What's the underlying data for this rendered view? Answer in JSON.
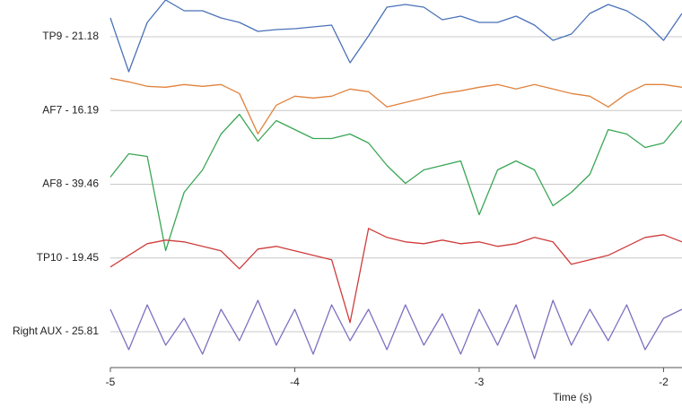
{
  "chart_data": {
    "type": "line",
    "x_label": "Time (s)",
    "x": [
      -5.0,
      -4.9,
      -4.8,
      -4.7,
      -4.6,
      -4.5,
      -4.4,
      -4.3,
      -4.2,
      -4.1,
      -4.0,
      -3.9,
      -3.8,
      -3.7,
      -3.6,
      -3.5,
      -3.4,
      -3.3,
      -3.2,
      -3.1,
      -3.0,
      -2.9,
      -2.8,
      -2.7,
      -2.6,
      -2.5,
      -2.4,
      -2.3,
      -2.2,
      -2.1,
      -2.0,
      -1.9
    ],
    "xlim": [
      -5,
      -1.9
    ],
    "xticks": [
      -5,
      -4,
      -3,
      -2
    ],
    "series": [
      {
        "name": "TP9 - 21.18",
        "color": "#4a72b8",
        "values": [
          21,
          -39,
          16,
          41,
          29,
          29,
          21,
          16,
          6,
          8,
          9,
          11,
          13,
          -29,
          1,
          33,
          36,
          33,
          19,
          23,
          16,
          16,
          23,
          13,
          -4,
          3,
          26,
          36,
          29,
          16,
          -4,
          26
        ]
      },
      {
        "name": "AF7 - 16.19",
        "color": "#e0823d",
        "values": [
          36,
          32,
          27,
          26,
          29,
          27,
          29,
          19,
          -26,
          6,
          16,
          14,
          16,
          24,
          21,
          4,
          9,
          14,
          19,
          22,
          26,
          29,
          24,
          29,
          24,
          19,
          16,
          4,
          19,
          29,
          29,
          26
        ]
      },
      {
        "name": "AF8 - 39.46",
        "color": "#3aa655",
        "values": [
          8,
          34,
          31,
          -74,
          -9,
          16,
          56,
          78,
          48,
          71,
          61,
          51,
          51,
          56,
          46,
          21,
          1,
          16,
          21,
          26,
          -34,
          16,
          26,
          16,
          -24,
          -9,
          11,
          61,
          56,
          41,
          46,
          71
        ]
      },
      {
        "name": "TP10 - 19.45",
        "color": "#cf3c3c",
        "values": [
          -10,
          3,
          16,
          20,
          18,
          13,
          8,
          -12,
          10,
          13,
          8,
          3,
          -2,
          -72,
          33,
          23,
          18,
          16,
          20,
          16,
          18,
          13,
          16,
          23,
          18,
          -7,
          -2,
          3,
          13,
          23,
          26,
          18
        ]
      },
      {
        "name": "Right AUX - 25.81",
        "color": "#7f6fc0",
        "values": [
          25,
          -20,
          30,
          -15,
          15,
          -25,
          25,
          -10,
          35,
          -15,
          25,
          -25,
          30,
          -10,
          25,
          -20,
          30,
          -15,
          20,
          -25,
          25,
          -15,
          30,
          -30,
          35,
          -15,
          25,
          -10,
          30,
          -20,
          15,
          25
        ]
      }
    ]
  }
}
